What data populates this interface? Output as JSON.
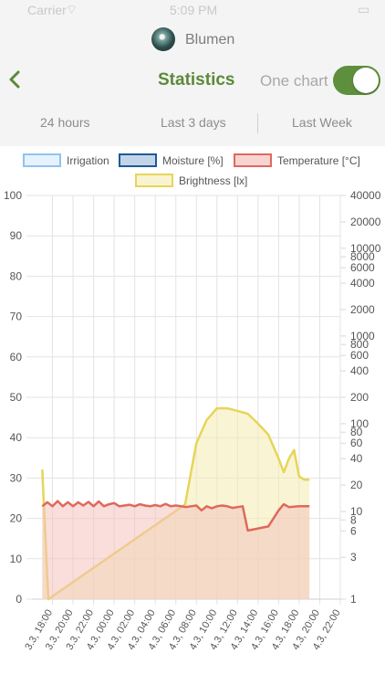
{
  "status_bar": {
    "carrier": "Carrier",
    "time": "5:09 PM"
  },
  "header": {
    "plant_name": "Blumen",
    "title": "Statistics",
    "one_chart_label": "One chart",
    "one_chart_on": true
  },
  "range_tabs": [
    "24 hours",
    "Last 3 days",
    "Last Week"
  ],
  "legend": [
    {
      "label": "Irrigation",
      "border": "#8fc3ee",
      "fill": "#e6f2fc"
    },
    {
      "label": "Moisture [%]",
      "border": "#1f5a94",
      "fill": "#c2d5e8"
    },
    {
      "label": "Temperature [°C]",
      "border": "#e0685c",
      "fill": "#f7d4d1"
    },
    {
      "label": "Brightness [lx]",
      "border": "#e6d55a",
      "fill": "#f9f4cf"
    }
  ],
  "chart_data": {
    "type": "line",
    "y_left": {
      "min": 0,
      "max": 100,
      "ticks": [
        "100",
        "90",
        "80",
        "70",
        "60",
        "50",
        "40",
        "30",
        "20",
        "10",
        "0"
      ]
    },
    "y_right": {
      "scale": "log",
      "min": 1,
      "max": 40000,
      "ticks": [
        "40000",
        "20000",
        "10000",
        "8000",
        "6000",
        "4000",
        "2000",
        "1000",
        "800",
        "600",
        "400",
        "200",
        "100",
        "80",
        "60",
        "40",
        "20",
        "10",
        "8",
        "6",
        "3",
        "1"
      ]
    },
    "x_ticks": [
      "3.3, 18:00",
      "3.3, 20:00",
      "3.3, 22:00",
      "4.3, 00:00",
      "4.3, 02:00",
      "4.3, 04:00",
      "4.3, 06:00",
      "4.3, 08:00",
      "4.3, 10:00",
      "4.3, 12:00",
      "4.3, 14:00",
      "4.3, 16:00",
      "4.3, 18:00",
      "4.3, 20:00",
      "4.3, 22:00"
    ],
    "series": [
      {
        "name": "Temperature [°C]",
        "axis": "left",
        "x": [
          17.0,
          17.5,
          18.0,
          18.5,
          19.0,
          19.5,
          20.0,
          20.5,
          21.0,
          21.5,
          22.0,
          22.5,
          23.0,
          23.5,
          24.0,
          24.5,
          25.0,
          25.5,
          26.0,
          26.5,
          27.0,
          27.5,
          28.0,
          28.5,
          29.0,
          29.5,
          30.0,
          30.5,
          31.0,
          31.5,
          32.0,
          32.5,
          33.0,
          33.5,
          34.0,
          34.5,
          35.0,
          35.5,
          36.0,
          36.5,
          37.0,
          38.0,
          39.0,
          40.0,
          40.5,
          41.0,
          42.0,
          43.0
        ],
        "y": [
          23.0,
          24.0,
          23.0,
          24.3,
          23.0,
          24.0,
          23.0,
          24.0,
          23.2,
          24.1,
          23.0,
          24.2,
          23.0,
          23.5,
          23.8,
          23.0,
          23.2,
          23.4,
          23.0,
          23.5,
          23.2,
          23.0,
          23.3,
          23.0,
          23.6,
          23.0,
          23.2,
          23.0,
          22.8,
          23.0,
          23.2,
          22.0,
          23.0,
          22.5,
          23.0,
          23.2,
          23.0,
          22.6,
          22.8,
          23.0,
          17.0,
          17.5,
          18.0,
          22.0,
          23.5,
          22.8,
          23.0,
          23.0
        ]
      },
      {
        "name": "Brightness [lx]",
        "axis": "right",
        "x": [
          17.0,
          17.6,
          30.9,
          31.4,
          32.0,
          33.0,
          34.0,
          35.0,
          36.0,
          37.0,
          38.0,
          39.0,
          40.0,
          40.5,
          41.0,
          41.5,
          42.0,
          42.5,
          43.0
        ],
        "y": [
          30,
          1,
          12,
          25,
          60,
          110,
          150,
          150,
          140,
          130,
          100,
          75,
          40,
          28,
          40,
          50,
          25,
          23,
          23
        ]
      }
    ]
  }
}
